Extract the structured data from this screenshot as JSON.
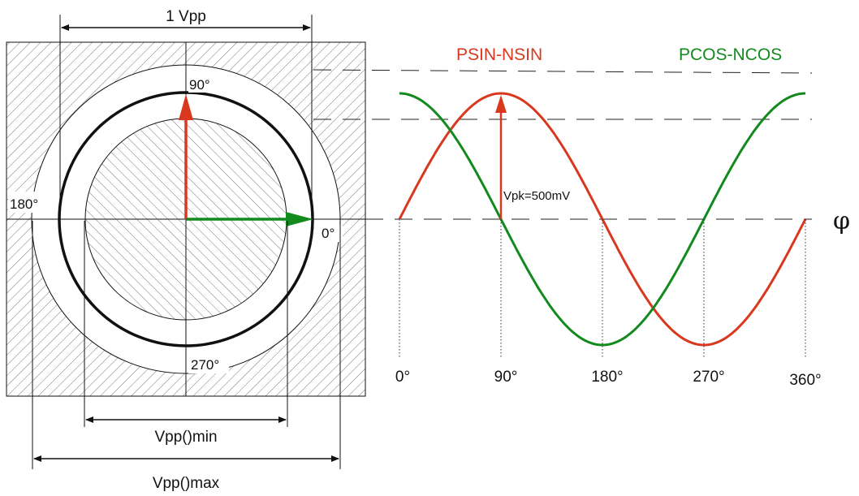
{
  "colors": {
    "sine": "#d9381e",
    "cosine": "#128a1d",
    "ink": "#111111",
    "hatch": "#7a7a7a"
  },
  "labels": {
    "vpp_top": "1 Vpp",
    "angle_90": "90°",
    "angle_180": "180°",
    "angle_0": "0°",
    "angle_270": "270°",
    "vpp_min": "Vpp()min",
    "vpp_max": "Vpp()max",
    "vpk": "Vpk=500mV",
    "phi": "φ"
  },
  "legend": {
    "sine": "PSIN-NSIN",
    "cosine": "PCOS-NCOS"
  },
  "axis_ticks": [
    "0°",
    "90°",
    "180°",
    "270°",
    "360°"
  ],
  "chart_data": {
    "type": "line",
    "x": [
      0,
      90,
      180,
      270,
      360
    ],
    "series": [
      {
        "name": "PSIN-NSIN",
        "function": "sin"
      },
      {
        "name": "PCOS-NCOS",
        "function": "cos"
      }
    ],
    "amplitude_label": "Vpk=500mV"
  }
}
